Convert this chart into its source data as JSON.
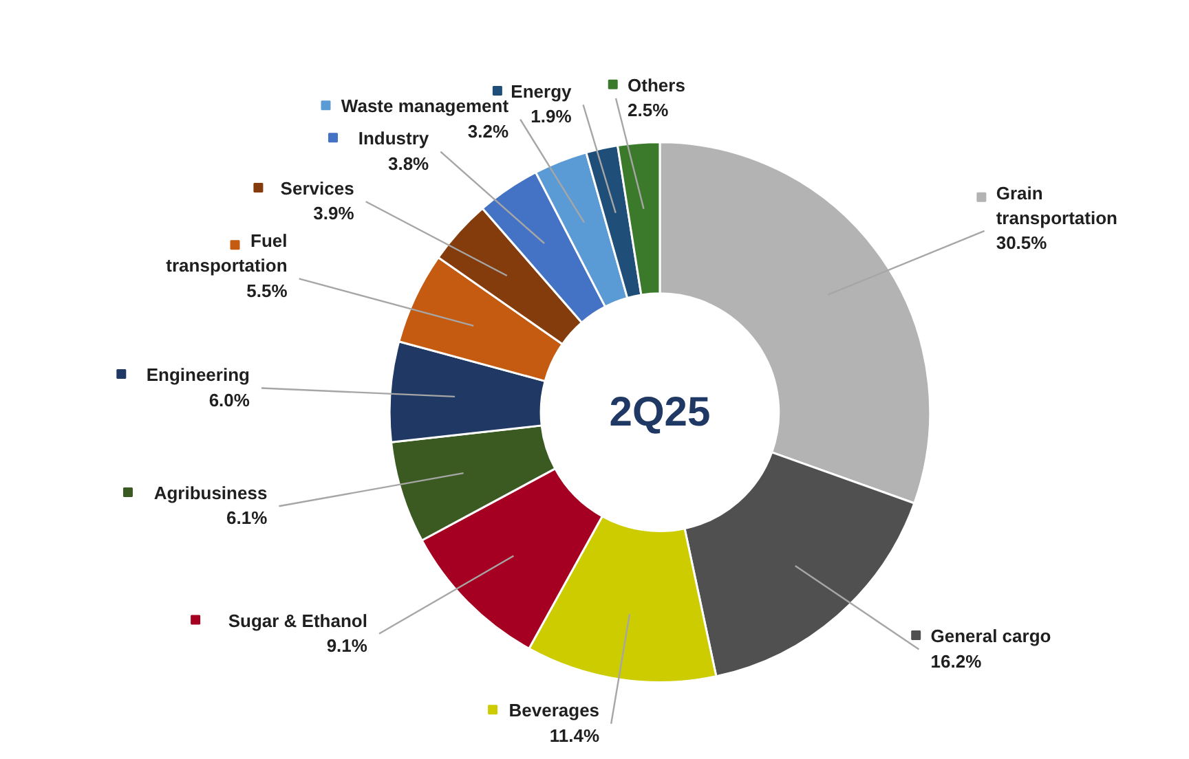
{
  "chart_data": {
    "type": "donut",
    "title": "2Q25",
    "categories": [
      "Grain transportation",
      "General cargo",
      "Beverages",
      "Sugar & Ethanol",
      "Agribusiness",
      "Engineering",
      "Fuel transportation",
      "Services",
      "Industry",
      "Waste management",
      "Energy",
      "Others"
    ],
    "values": [
      30.5,
      16.2,
      11.4,
      9.1,
      6.1,
      6.0,
      5.5,
      3.9,
      3.8,
      3.2,
      1.9,
      2.5
    ],
    "colors": [
      "#b3b3b3",
      "#505050",
      "#cccc00",
      "#a50021",
      "#3a5a22",
      "#1f3864",
      "#c55a11",
      "#843c0c",
      "#4472c4",
      "#5b9bd5",
      "#1f4e79",
      "#3b7a2a"
    ],
    "legend": true,
    "value_labels": [
      "30.5%",
      "16.2%",
      "11.4%",
      "9.1%",
      "6.1%",
      "6.0%",
      "5.5%",
      "3.9%",
      "3.8%",
      "3.2%",
      "1.9%",
      "2.5%"
    ]
  }
}
